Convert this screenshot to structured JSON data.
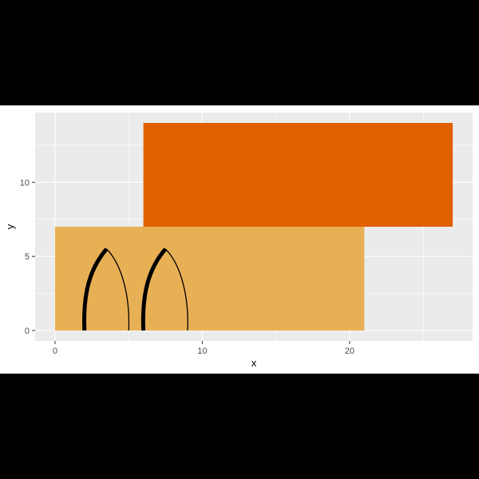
{
  "chart_data": {
    "type": "rect",
    "xlabel": "x",
    "ylabel": "y",
    "xlim": [
      -1.35,
      28.35
    ],
    "ylim": [
      -0.7,
      14.7
    ],
    "x_ticks": [
      0,
      10,
      20
    ],
    "y_ticks": [
      0,
      5,
      10
    ],
    "x_tick_labels": [
      "0",
      "10",
      "20"
    ],
    "y_tick_labels": [
      "0",
      "5",
      "10"
    ],
    "grid": true,
    "background": "#EBEBEB",
    "rects": [
      {
        "xmin": 0,
        "xmax": 21,
        "ymin": 0,
        "ymax": 7,
        "fill": "#E8B055"
      },
      {
        "xmin": 6,
        "xmax": 27,
        "ymin": 7,
        "ymax": 14,
        "fill": "#E06000"
      }
    ],
    "arcs": [
      {
        "x_start": 2,
        "x_end": 5,
        "apex_x": 3.5,
        "apex_y": 5.5
      },
      {
        "x_start": 6,
        "x_end": 9,
        "apex_x": 7.5,
        "apex_y": 5.5
      }
    ]
  }
}
